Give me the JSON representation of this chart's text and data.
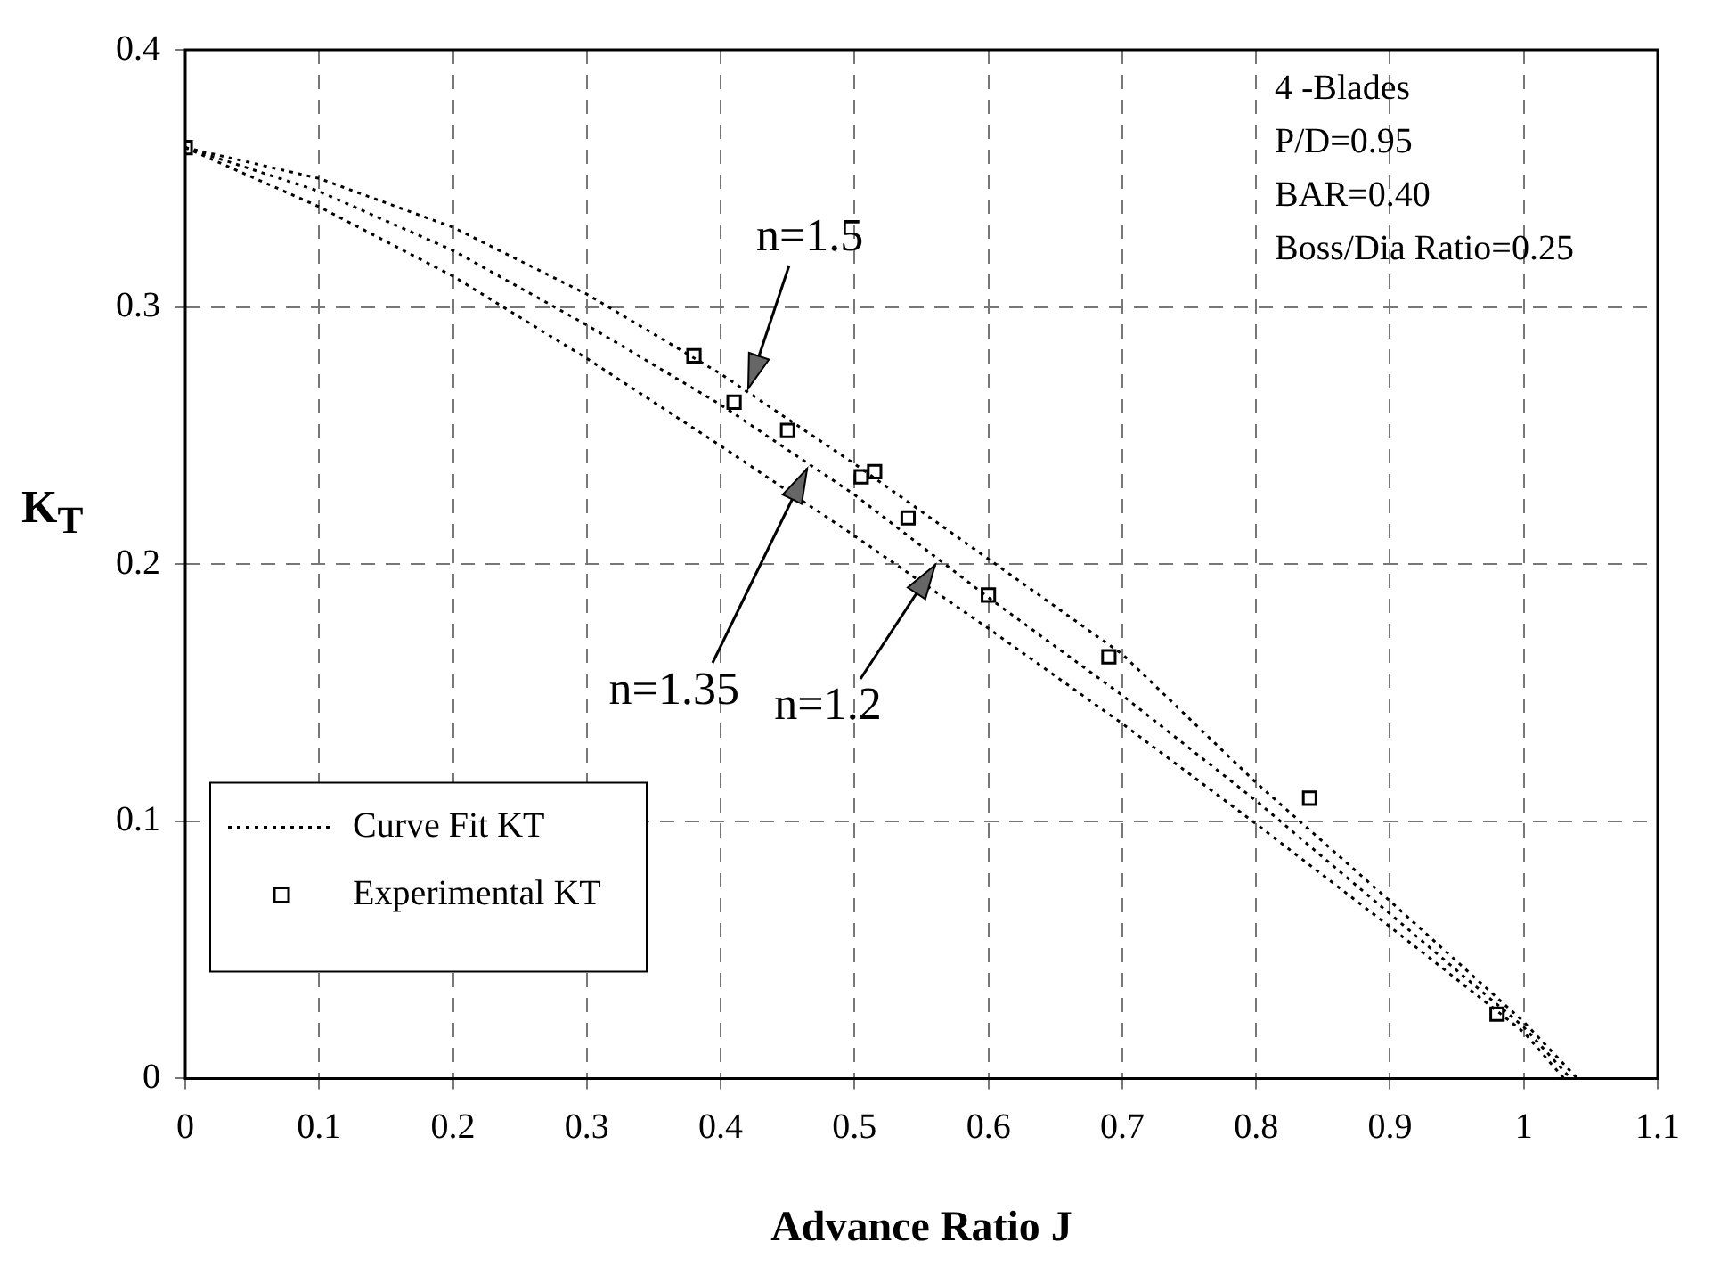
{
  "chart_data": {
    "type": "line",
    "xlabel": "Advance Ratio J",
    "ylabel": "K$_{T}$",
    "xlim": [
      0,
      1.1
    ],
    "xticks": [
      0,
      0.1,
      0.2,
      0.3,
      0.4,
      0.5,
      0.6,
      0.7,
      0.8,
      0.9,
      {
        "value": 1,
        "label": "1"
      },
      1.1
    ],
    "ylim": [
      0,
      0.4
    ],
    "yticks": [
      {
        "value": 0,
        "label": "0"
      },
      0.1,
      0.2,
      0.3,
      0.4
    ],
    "grid": true,
    "legend": "bottom left",
    "series": [
      {
        "name": "Curve Fit KT",
        "color": "#000000",
        "line_style": "dotted",
        "marker": "none",
        "x": [
          0,
          0.1,
          0.2,
          0.3,
          0.4,
          0.5,
          0.6,
          0.7,
          0.8,
          0.9,
          1.0,
          1.04
        ],
        "values": [
          0.362,
          0.35,
          0.331,
          0.305,
          0.274,
          0.239,
          0.202,
          0.165,
          0.115,
          0.069,
          0.022,
          0
        ]
      },
      {
        "color": "#000000",
        "line_style": "dotted",
        "marker": "none",
        "x": [
          0,
          0.1,
          0.2,
          0.3,
          0.4,
          0.5,
          0.6,
          0.7,
          0.8,
          0.9,
          1.0,
          1.035
        ],
        "values": [
          0.362,
          0.345,
          0.322,
          0.293,
          0.262,
          0.227,
          0.187,
          0.149,
          0.108,
          0.064,
          0.02,
          0
        ]
      },
      {
        "color": "#000000",
        "line_style": "dotted",
        "marker": "none",
        "x": [
          0,
          0.1,
          0.2,
          0.3,
          0.4,
          0.5,
          0.6,
          0.7,
          0.8,
          0.9,
          1.0,
          1.03
        ],
        "values": [
          0.362,
          0.339,
          0.312,
          0.28,
          0.246,
          0.211,
          0.175,
          0.138,
          0.099,
          0.059,
          0.018,
          0
        ]
      },
      {
        "name": "Experimental KT",
        "type": "scatter",
        "color": "#000000",
        "marker": "square",
        "x": [
          0,
          0.38,
          0.41,
          0.45,
          0.505,
          0.515,
          0.54,
          0.6,
          0.69,
          0.84,
          0.98
        ],
        "values": [
          0.362,
          0.281,
          0.263,
          0.252,
          0.234,
          0.236,
          0.218,
          0.188,
          0.164,
          0.109,
          0.025
        ]
      }
    ],
    "annotations": [
      "4 -Blades",
      "P/D=0.95",
      "BAR=0.40",
      "Boss/Dia Ratio=0.25",
      {
        "text": "n=1.5",
        "x": 0.42,
        "y": 0.268
      },
      {
        "text": "n=1.35",
        "x": 0.465,
        "y": 0.237
      },
      {
        "text": "n=1.2",
        "x": 0.56,
        "y": 0.2
      }
    ]
  }
}
